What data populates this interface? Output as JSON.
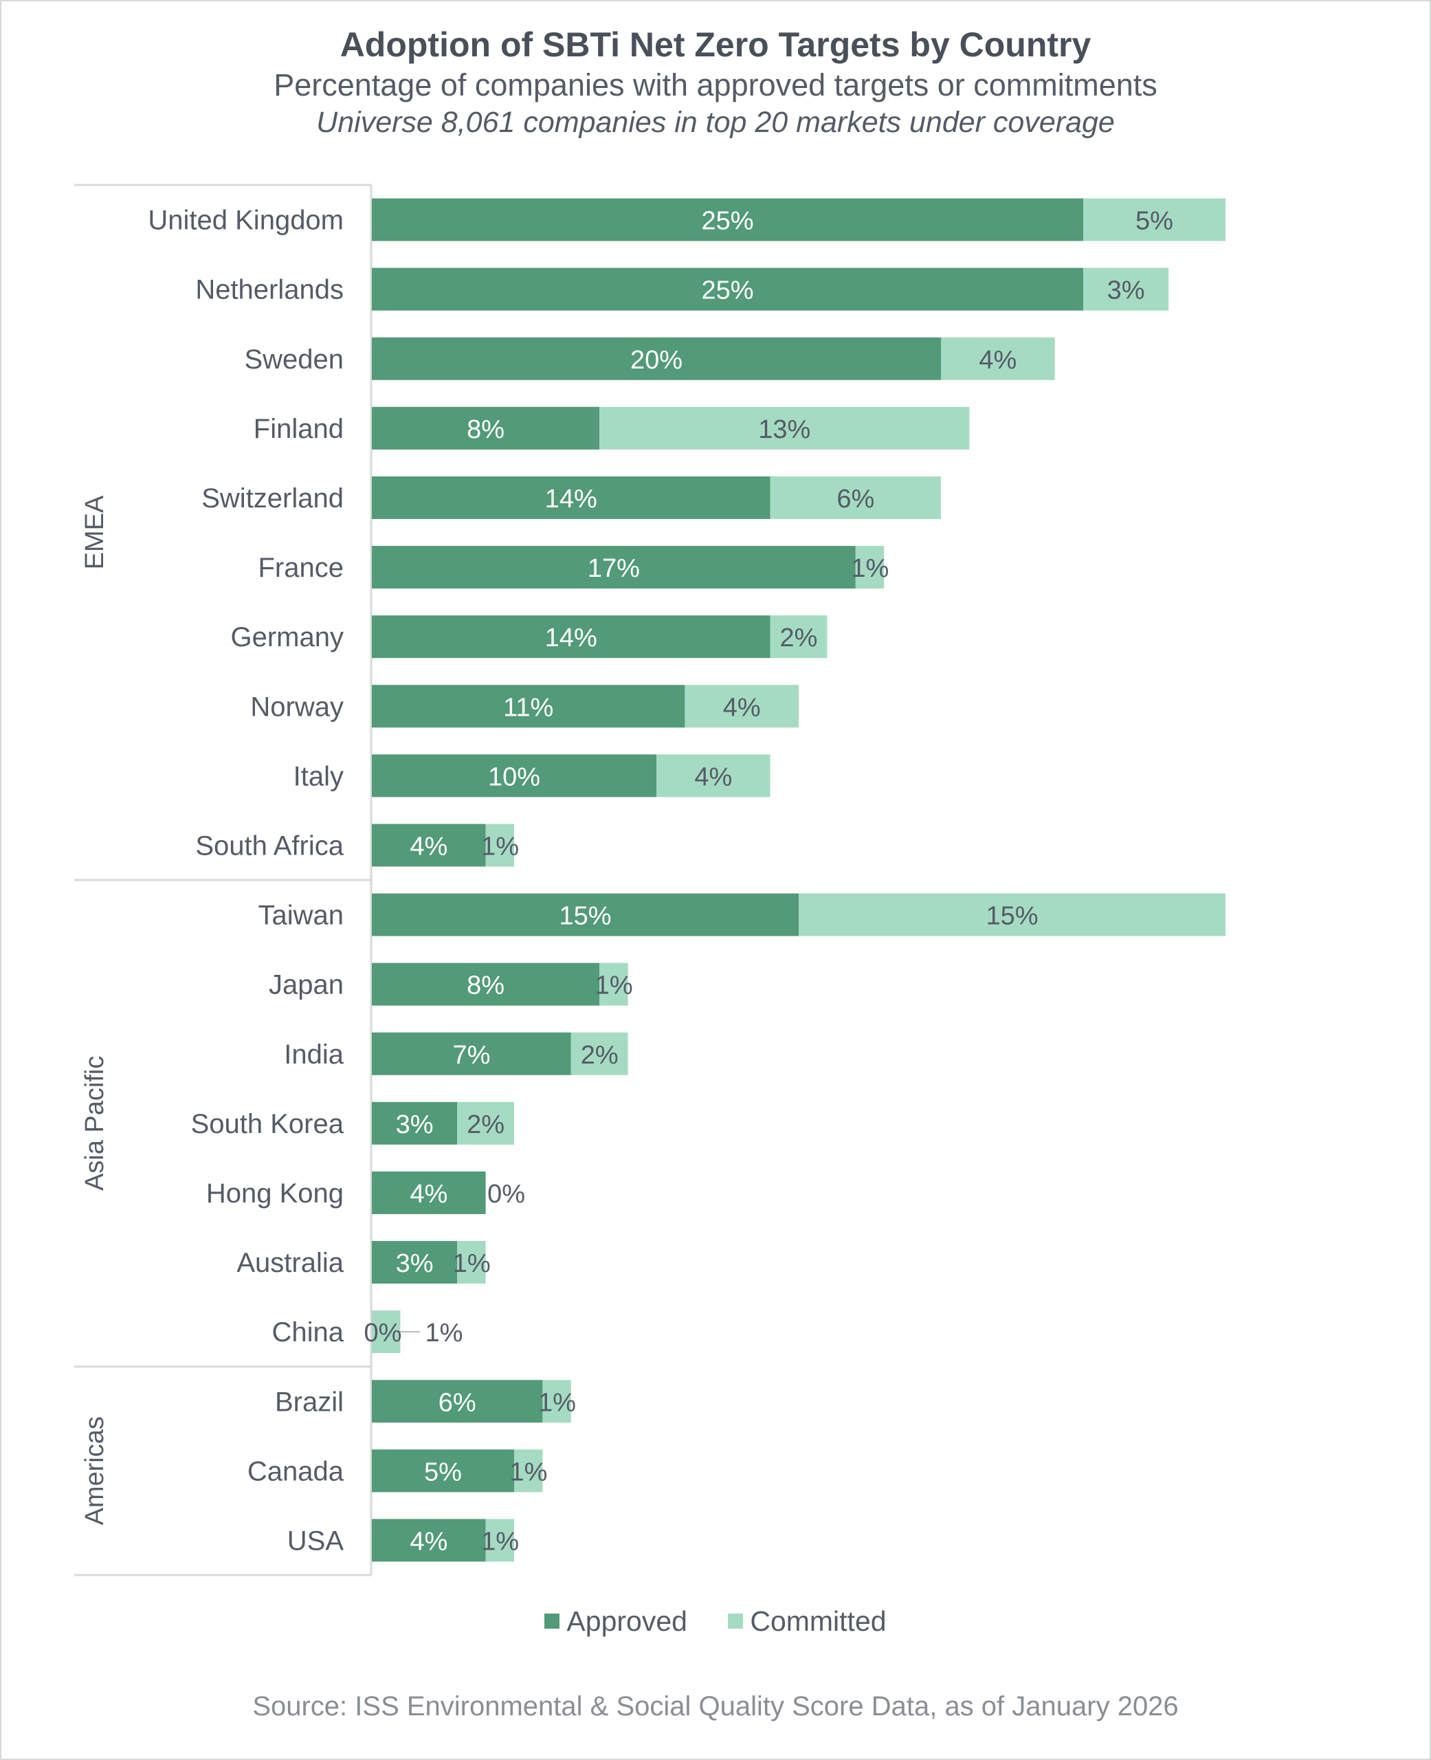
{
  "colors": {
    "approved": "#529a78",
    "committed": "#a5dbc3",
    "label_dark": "#555b66",
    "axis": "#d9d9d9"
  },
  "chart_data": {
    "type": "bar",
    "orientation": "horizontal",
    "stacked": true,
    "title": "Adoption of SBTi Net Zero Targets by Country",
    "subtitle": "Percentage of companies with approved targets or commitments",
    "note": "Universe 8,061 companies in top 20 markets under coverage",
    "source": "Source: ISS Environmental & Social Quality Score Data, as of January 2026",
    "legend": {
      "position": "bottom",
      "entries": [
        "Approved",
        "Committed"
      ]
    },
    "grid": false,
    "xlim": [
      0,
      30
    ],
    "groups": [
      {
        "name": "EMEA",
        "categories": [
          "United Kingdom",
          "Netherlands",
          "Sweden",
          "Finland",
          "Switzerland",
          "France",
          "Germany",
          "Norway",
          "Italy",
          "South Africa"
        ]
      },
      {
        "name": "Asia Pacific",
        "categories": [
          "Taiwan",
          "Japan",
          "India",
          "South Korea",
          "Hong Kong",
          "Australia",
          "China"
        ]
      },
      {
        "name": "Americas",
        "categories": [
          "Brazil",
          "Canada",
          "USA"
        ]
      }
    ],
    "categories": [
      "United Kingdom",
      "Netherlands",
      "Sweden",
      "Finland",
      "Switzerland",
      "France",
      "Germany",
      "Norway",
      "Italy",
      "South Africa",
      "Taiwan",
      "Japan",
      "India",
      "South Korea",
      "Hong Kong",
      "Australia",
      "China",
      "Brazil",
      "Canada",
      "USA"
    ],
    "series": [
      {
        "name": "Approved",
        "values": [
          25,
          25,
          20,
          8,
          14,
          17,
          14,
          11,
          10,
          4,
          15,
          8,
          7,
          3,
          4,
          3,
          0,
          6,
          5,
          4
        ],
        "labels": [
          "25%",
          "25%",
          "20%",
          "8%",
          "14%",
          "17%",
          "14%",
          "11%",
          "10%",
          "4%",
          "15%",
          "8%",
          "7%",
          "3%",
          "4%",
          "3%",
          "0%",
          "6%",
          "5%",
          "4%"
        ]
      },
      {
        "name": "Committed",
        "values": [
          5,
          3,
          4,
          13,
          6,
          1,
          2,
          4,
          4,
          1,
          15,
          1,
          2,
          2,
          0,
          1,
          1,
          1,
          1,
          1
        ],
        "labels": [
          "5%",
          "3%",
          "4%",
          "13%",
          "6%",
          "1%",
          "2%",
          "4%",
          "4%",
          "1%",
          "15%",
          "1%",
          "2%",
          "2%",
          "0%",
          "1%",
          "1%",
          "1%",
          "1%",
          "1%"
        ]
      }
    ]
  }
}
